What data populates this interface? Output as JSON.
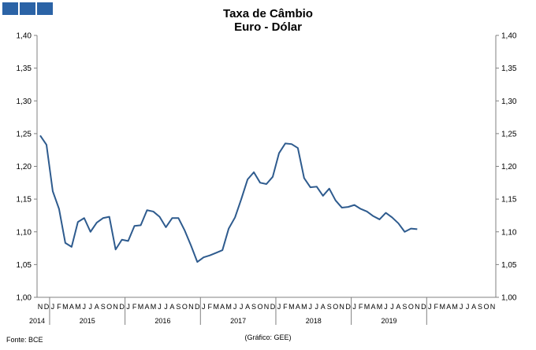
{
  "header": {
    "logo_icon": "three-blue-squares-logo",
    "title_line1": "Taxa de Câmbio",
    "title_line2": "Euro - Dólar"
  },
  "footer": {
    "source": "Fonte: BCE",
    "credit": "(Gráfico: GEE)"
  },
  "colors": {
    "series": "#2e5b8e",
    "logo": "#2b63a6"
  },
  "chart_data": {
    "type": "line",
    "title": "Taxa de Câmbio Euro - Dólar",
    "ylim": [
      1.0,
      1.4
    ],
    "y_ticks": [
      "1,00",
      "1,05",
      "1,10",
      "1,15",
      "1,20",
      "1,25",
      "1,30",
      "1,35",
      "1,40"
    ],
    "y_axis_both_sides": true,
    "grid": false,
    "month_labels": [
      "N",
      "D",
      "J",
      "F",
      "M",
      "A",
      "M",
      "J",
      "J",
      "A",
      "S",
      "O",
      "N",
      "D",
      "J",
      "F",
      "M",
      "A",
      "M",
      "J",
      "J",
      "A",
      "S",
      "O",
      "N",
      "D",
      "J",
      "F",
      "M",
      "A",
      "M",
      "J",
      "J",
      "A",
      "S",
      "O",
      "N",
      "D",
      "J",
      "F",
      "M",
      "A",
      "M",
      "J",
      "J",
      "A",
      "S",
      "O",
      "N",
      "D",
      "J",
      "F",
      "M",
      "A",
      "M",
      "J",
      "J",
      "A",
      "S",
      "O",
      "N",
      "D",
      "J",
      "F",
      "M",
      "A",
      "M",
      "J",
      "J",
      "A",
      "S",
      "O",
      "N"
    ],
    "year_labels": [
      "2014",
      "2015",
      "2016",
      "2017",
      "2018",
      "2019"
    ],
    "series": [
      {
        "values": [
          1.247,
          1.233,
          1.162,
          1.135,
          1.083,
          1.077,
          1.115,
          1.121,
          1.1,
          1.114,
          1.121,
          1.123,
          1.073,
          1.088,
          1.086,
          1.109,
          1.11,
          1.133,
          1.131,
          1.123,
          1.107,
          1.121,
          1.121,
          1.102,
          1.079,
          1.054,
          1.061,
          1.064,
          1.068,
          1.072,
          1.105,
          1.122,
          1.15,
          1.18,
          1.191,
          1.175,
          1.173,
          1.184,
          1.22,
          1.235,
          1.234,
          1.228,
          1.182,
          1.168,
          1.169,
          1.155,
          1.166,
          1.148,
          1.137,
          1.138,
          1.141,
          1.135,
          1.131,
          1.124,
          1.119,
          1.129,
          1.122,
          1.113,
          1.1,
          1.105,
          1.104
        ]
      }
    ]
  }
}
